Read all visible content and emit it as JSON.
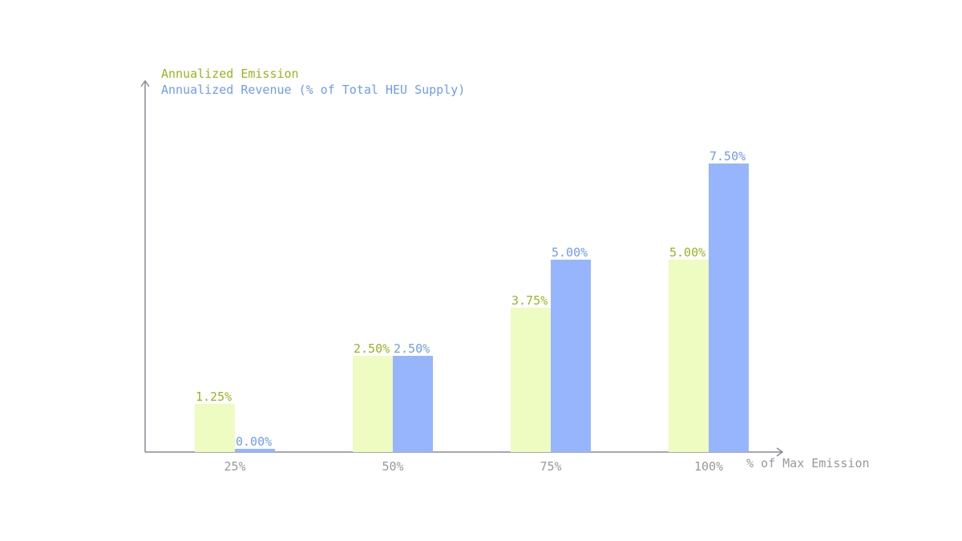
{
  "chart_data": {
    "type": "bar",
    "categories": [
      "25%",
      "50%",
      "75%",
      "100%"
    ],
    "xlabel": "% of Max Emission",
    "ylim": [
      0,
      8.5
    ],
    "grid": false,
    "legend_position": "top-left",
    "value_suffix": "%",
    "series": [
      {
        "name": "Annualized Emission",
        "values": [
          1.25,
          2.5,
          3.75,
          5.0
        ],
        "bar_color": "#eefbc1",
        "label_color": "#9ab321"
      },
      {
        "name": "Annualized Revenue (% of Total HEU Supply)",
        "values": [
          0.0,
          2.5,
          5.0,
          7.5
        ],
        "bar_color": "#97b5fd",
        "label_color": "#6f9bf2"
      }
    ],
    "axis_color": "#8a8a99",
    "tick_label_color": "#999999"
  }
}
